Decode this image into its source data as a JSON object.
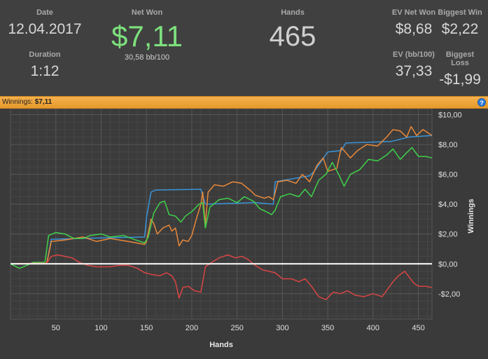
{
  "stats": {
    "date_label": "Date",
    "date_value": "12.04.2017",
    "duration_label": "Duration",
    "duration_value": "1:12",
    "net_won_label": "Net Won",
    "net_won_value": "$7,11",
    "bb100_value": "30,58 bb/100",
    "hands_label": "Hands",
    "hands_value": "465",
    "ev_net_won_label": "EV Net Won",
    "ev_net_won_value": "$8,68",
    "biggest_win_label": "Biggest Win",
    "biggest_win_value": "$2,22",
    "ev_bb100_label": "EV (bb/100)",
    "ev_bb100_value": "37,33",
    "biggest_loss_label": "Biggest Loss",
    "biggest_loss_value": "-$1,99"
  },
  "banner": {
    "label": "Winnings:",
    "value": "$7,11",
    "help_icon": "?"
  },
  "colors": {
    "orange": "#e8883a",
    "blue": "#3a94d8",
    "green": "#3fd14a",
    "red": "#d94545",
    "zero_line": "#ffffff",
    "net_won": "#7de07d"
  },
  "chart_data": {
    "type": "line",
    "xlabel": "Hands",
    "ylabel": "Winnings",
    "xlim": [
      0,
      465
    ],
    "ylim": [
      -3.7,
      10.4
    ],
    "x_ticks": [
      50,
      100,
      150,
      200,
      250,
      300,
      350,
      400,
      450
    ],
    "x_tick_labels": [
      "50",
      "100",
      "150",
      "200",
      "250",
      "300",
      "350",
      "400",
      "450"
    ],
    "y_ticks": [
      -2,
      0,
      2,
      4,
      6,
      8,
      10
    ],
    "y_tick_labels": [
      "-$2,00",
      "$0,00",
      "$2,00",
      "$4,00",
      "$6,00",
      "$8,00",
      "$10,00"
    ],
    "grid": true,
    "series": [
      {
        "color": "#3a94d8",
        "points": [
          [
            0,
            0
          ],
          [
            40,
            0.05
          ],
          [
            45,
            1.65
          ],
          [
            110,
            1.75
          ],
          [
            148,
            1.8
          ],
          [
            150,
            3.1
          ],
          [
            155,
            4.8
          ],
          [
            160,
            4.95
          ],
          [
            210,
            5.0
          ],
          [
            215,
            4.0
          ],
          [
            270,
            4.1
          ],
          [
            290,
            4.0
          ],
          [
            292,
            5.5
          ],
          [
            330,
            5.9
          ],
          [
            335,
            6.2
          ],
          [
            350,
            7.5
          ],
          [
            365,
            7.6
          ],
          [
            370,
            8.1
          ],
          [
            420,
            8.2
          ],
          [
            440,
            8.5
          ],
          [
            465,
            8.6
          ]
        ]
      },
      {
        "color": "#e8883a",
        "points": [
          [
            0,
            0
          ],
          [
            40,
            0.05
          ],
          [
            45,
            1.5
          ],
          [
            60,
            1.6
          ],
          [
            80,
            1.8
          ],
          [
            95,
            1.5
          ],
          [
            110,
            1.7
          ],
          [
            130,
            1.5
          ],
          [
            148,
            1.3
          ],
          [
            150,
            1.5
          ],
          [
            155,
            3.0
          ],
          [
            158,
            2.7
          ],
          [
            162,
            2.0
          ],
          [
            168,
            2.4
          ],
          [
            175,
            2.6
          ],
          [
            178,
            2.2
          ],
          [
            182,
            2.4
          ],
          [
            186,
            1.2
          ],
          [
            190,
            1.6
          ],
          [
            196,
            1.5
          ],
          [
            200,
            1.9
          ],
          [
            205,
            3.0
          ],
          [
            210,
            4.0
          ],
          [
            212,
            4.8
          ],
          [
            215,
            2.6
          ],
          [
            218,
            4.8
          ],
          [
            225,
            5.3
          ],
          [
            235,
            5.2
          ],
          [
            245,
            5.5
          ],
          [
            255,
            5.4
          ],
          [
            265,
            4.9
          ],
          [
            270,
            4.6
          ],
          [
            280,
            4.4
          ],
          [
            285,
            4.5
          ],
          [
            290,
            4.3
          ],
          [
            295,
            5.5
          ],
          [
            305,
            5.6
          ],
          [
            315,
            5.4
          ],
          [
            322,
            6.0
          ],
          [
            330,
            5.5
          ],
          [
            338,
            6.6
          ],
          [
            345,
            7.1
          ],
          [
            350,
            6.2
          ],
          [
            360,
            6.4
          ],
          [
            365,
            7.8
          ],
          [
            375,
            7.1
          ],
          [
            383,
            7.6
          ],
          [
            393,
            8.0
          ],
          [
            405,
            7.9
          ],
          [
            415,
            8.5
          ],
          [
            422,
            9.0
          ],
          [
            430,
            8.9
          ],
          [
            437,
            8.5
          ],
          [
            442,
            9.2
          ],
          [
            448,
            8.6
          ],
          [
            455,
            9.0
          ],
          [
            465,
            8.6
          ]
        ]
      },
      {
        "color": "#3fd14a",
        "points": [
          [
            0,
            0
          ],
          [
            10,
            -0.3
          ],
          [
            18,
            -0.1
          ],
          [
            25,
            0.1
          ],
          [
            38,
            0.1
          ],
          [
            42,
            1.9
          ],
          [
            50,
            2.1
          ],
          [
            60,
            2.0
          ],
          [
            70,
            1.7
          ],
          [
            80,
            1.7
          ],
          [
            88,
            1.9
          ],
          [
            100,
            2.0
          ],
          [
            110,
            1.8
          ],
          [
            125,
            1.9
          ],
          [
            138,
            1.6
          ],
          [
            148,
            1.4
          ],
          [
            152,
            1.8
          ],
          [
            158,
            3.4
          ],
          [
            165,
            4.1
          ],
          [
            170,
            4.2
          ],
          [
            175,
            3.3
          ],
          [
            182,
            3.2
          ],
          [
            188,
            2.8
          ],
          [
            193,
            3.2
          ],
          [
            200,
            3.5
          ],
          [
            208,
            4.0
          ],
          [
            212,
            4.1
          ],
          [
            215,
            2.4
          ],
          [
            220,
            3.8
          ],
          [
            230,
            4.3
          ],
          [
            240,
            4.4
          ],
          [
            250,
            4.1
          ],
          [
            258,
            4.5
          ],
          [
            268,
            4.2
          ],
          [
            275,
            3.7
          ],
          [
            282,
            3.5
          ],
          [
            288,
            3.3
          ],
          [
            292,
            3.6
          ],
          [
            298,
            4.5
          ],
          [
            308,
            4.7
          ],
          [
            318,
            4.5
          ],
          [
            325,
            5.0
          ],
          [
            332,
            4.5
          ],
          [
            340,
            5.6
          ],
          [
            348,
            6.0
          ],
          [
            355,
            6.8
          ],
          [
            362,
            6.0
          ],
          [
            368,
            5.2
          ],
          [
            375,
            6.0
          ],
          [
            385,
            6.3
          ],
          [
            395,
            7.0
          ],
          [
            405,
            6.9
          ],
          [
            415,
            7.3
          ],
          [
            422,
            7.7
          ],
          [
            430,
            7.0
          ],
          [
            438,
            7.5
          ],
          [
            443,
            7.8
          ],
          [
            450,
            7.2
          ],
          [
            458,
            7.2
          ],
          [
            465,
            7.1
          ]
        ]
      },
      {
        "color": "#d94545",
        "points": [
          [
            0,
            0
          ],
          [
            40,
            0.05
          ],
          [
            45,
            0.5
          ],
          [
            52,
            0.6
          ],
          [
            60,
            0.5
          ],
          [
            68,
            0.4
          ],
          [
            76,
            0.1
          ],
          [
            85,
            -0.1
          ],
          [
            95,
            -0.2
          ],
          [
            110,
            -0.2
          ],
          [
            120,
            -0.1
          ],
          [
            130,
            -0.1
          ],
          [
            140,
            -0.3
          ],
          [
            148,
            -0.6
          ],
          [
            155,
            -0.7
          ],
          [
            165,
            -0.8
          ],
          [
            172,
            -0.6
          ],
          [
            178,
            -0.8
          ],
          [
            182,
            -1.2
          ],
          [
            186,
            -2.3
          ],
          [
            190,
            -1.6
          ],
          [
            196,
            -1.5
          ],
          [
            203,
            -1.8
          ],
          [
            210,
            -1.9
          ],
          [
            215,
            -0.2
          ],
          [
            222,
            0.1
          ],
          [
            230,
            0.4
          ],
          [
            240,
            0.6
          ],
          [
            248,
            0.4
          ],
          [
            255,
            0.5
          ],
          [
            262,
            0.3
          ],
          [
            270,
            -0.1
          ],
          [
            278,
            -0.4
          ],
          [
            285,
            -0.5
          ],
          [
            292,
            -0.6
          ],
          [
            300,
            -1.0
          ],
          [
            310,
            -1.0
          ],
          [
            318,
            -1.2
          ],
          [
            325,
            -1.0
          ],
          [
            332,
            -1.5
          ],
          [
            340,
            -2.2
          ],
          [
            348,
            -2.4
          ],
          [
            356,
            -1.9
          ],
          [
            364,
            -2.0
          ],
          [
            372,
            -1.8
          ],
          [
            380,
            -2.1
          ],
          [
            390,
            -2.2
          ],
          [
            400,
            -2.0
          ],
          [
            410,
            -2.2
          ],
          [
            416,
            -1.7
          ],
          [
            422,
            -1.2
          ],
          [
            428,
            -0.8
          ],
          [
            435,
            -0.5
          ],
          [
            440,
            -0.9
          ],
          [
            445,
            -1.3
          ],
          [
            450,
            -1.5
          ],
          [
            458,
            -1.5
          ],
          [
            465,
            -1.6
          ]
        ]
      }
    ]
  }
}
